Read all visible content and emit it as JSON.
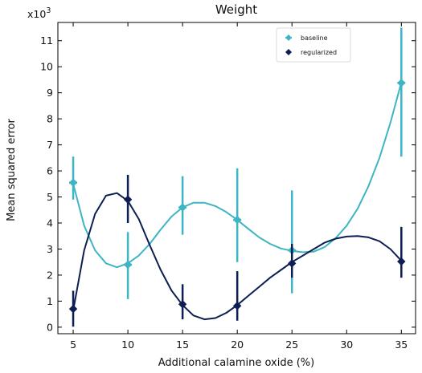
{
  "chart_data": {
    "type": "scatter",
    "title": "Weight",
    "xlabel": "Additional calamine oxide (%)",
    "ylabel": "Mean squared error",
    "y_multiplier_label": "x10",
    "y_multiplier_exponent": "3",
    "xlim": [
      3.6,
      36.3
    ],
    "ylim": [
      -0.25,
      11.7
    ],
    "xticks": [
      5,
      10,
      15,
      20,
      25,
      30,
      35
    ],
    "yticks": [
      0,
      1,
      2,
      3,
      4,
      5,
      6,
      7,
      8,
      9,
      10,
      11
    ],
    "grid": false,
    "legend_position": "top-right",
    "series": [
      {
        "name": "baseline",
        "color": "#3db5c2",
        "marker": "plus-diamond",
        "points": [
          {
            "x": 5,
            "y": 5.55,
            "err_low": 4.9,
            "err_high": 6.55
          },
          {
            "x": 10,
            "y": 2.4,
            "err_low": 1.08,
            "err_high": 3.65
          },
          {
            "x": 15,
            "y": 4.6,
            "err_low": 3.55,
            "err_high": 5.8
          },
          {
            "x": 20,
            "y": 4.12,
            "err_low": 2.5,
            "err_high": 6.1
          },
          {
            "x": 25,
            "y": 2.95,
            "err_low": 1.3,
            "err_high": 5.25
          },
          {
            "x": 35,
            "y": 9.38,
            "err_low": 6.55,
            "err_high": 11.5
          }
        ],
        "curve": [
          [
            5,
            5.5
          ],
          [
            6,
            3.9
          ],
          [
            7,
            2.95
          ],
          [
            8,
            2.45
          ],
          [
            9,
            2.3
          ],
          [
            10,
            2.45
          ],
          [
            11,
            2.75
          ],
          [
            12,
            3.2
          ],
          [
            13,
            3.75
          ],
          [
            14,
            4.25
          ],
          [
            15,
            4.6
          ],
          [
            16,
            4.78
          ],
          [
            17,
            4.78
          ],
          [
            18,
            4.65
          ],
          [
            19,
            4.42
          ],
          [
            20,
            4.12
          ],
          [
            21,
            3.78
          ],
          [
            22,
            3.45
          ],
          [
            23,
            3.2
          ],
          [
            24,
            3.02
          ],
          [
            25,
            2.93
          ],
          [
            26,
            2.88
          ],
          [
            27,
            2.9
          ],
          [
            28,
            3.08
          ],
          [
            29,
            3.42
          ],
          [
            30,
            3.9
          ],
          [
            31,
            4.55
          ],
          [
            32,
            5.42
          ],
          [
            33,
            6.5
          ],
          [
            34,
            7.85
          ],
          [
            35,
            9.4
          ]
        ]
      },
      {
        "name": "regularized",
        "color": "#0d1f52",
        "marker": "diamond",
        "points": [
          {
            "x": 5,
            "y": 0.7,
            "err_low": 0.02,
            "err_high": 1.4
          },
          {
            "x": 10,
            "y": 4.9,
            "err_low": 4.0,
            "err_high": 5.85
          },
          {
            "x": 15,
            "y": 0.88,
            "err_low": 0.3,
            "err_high": 1.65
          },
          {
            "x": 20,
            "y": 0.82,
            "err_low": 0.25,
            "err_high": 2.15
          },
          {
            "x": 25,
            "y": 2.45,
            "err_low": 1.9,
            "err_high": 3.2
          },
          {
            "x": 35,
            "y": 2.52,
            "err_low": 1.9,
            "err_high": 3.85
          }
        ],
        "curve": [
          [
            5,
            0.65
          ],
          [
            6,
            2.95
          ],
          [
            7,
            4.35
          ],
          [
            8,
            5.05
          ],
          [
            9,
            5.15
          ],
          [
            10,
            4.85
          ],
          [
            11,
            4.15
          ],
          [
            12,
            3.15
          ],
          [
            13,
            2.2
          ],
          [
            14,
            1.4
          ],
          [
            15,
            0.85
          ],
          [
            16,
            0.45
          ],
          [
            17,
            0.3
          ],
          [
            18,
            0.35
          ],
          [
            19,
            0.55
          ],
          [
            20,
            0.85
          ],
          [
            21,
            1.2
          ],
          [
            22,
            1.55
          ],
          [
            23,
            1.9
          ],
          [
            24,
            2.2
          ],
          [
            25,
            2.5
          ],
          [
            26,
            2.75
          ],
          [
            27,
            3.0
          ],
          [
            28,
            3.25
          ],
          [
            29,
            3.4
          ],
          [
            30,
            3.48
          ],
          [
            31,
            3.5
          ],
          [
            32,
            3.45
          ],
          [
            33,
            3.3
          ],
          [
            34,
            3.0
          ],
          [
            35,
            2.55
          ]
        ]
      }
    ]
  }
}
